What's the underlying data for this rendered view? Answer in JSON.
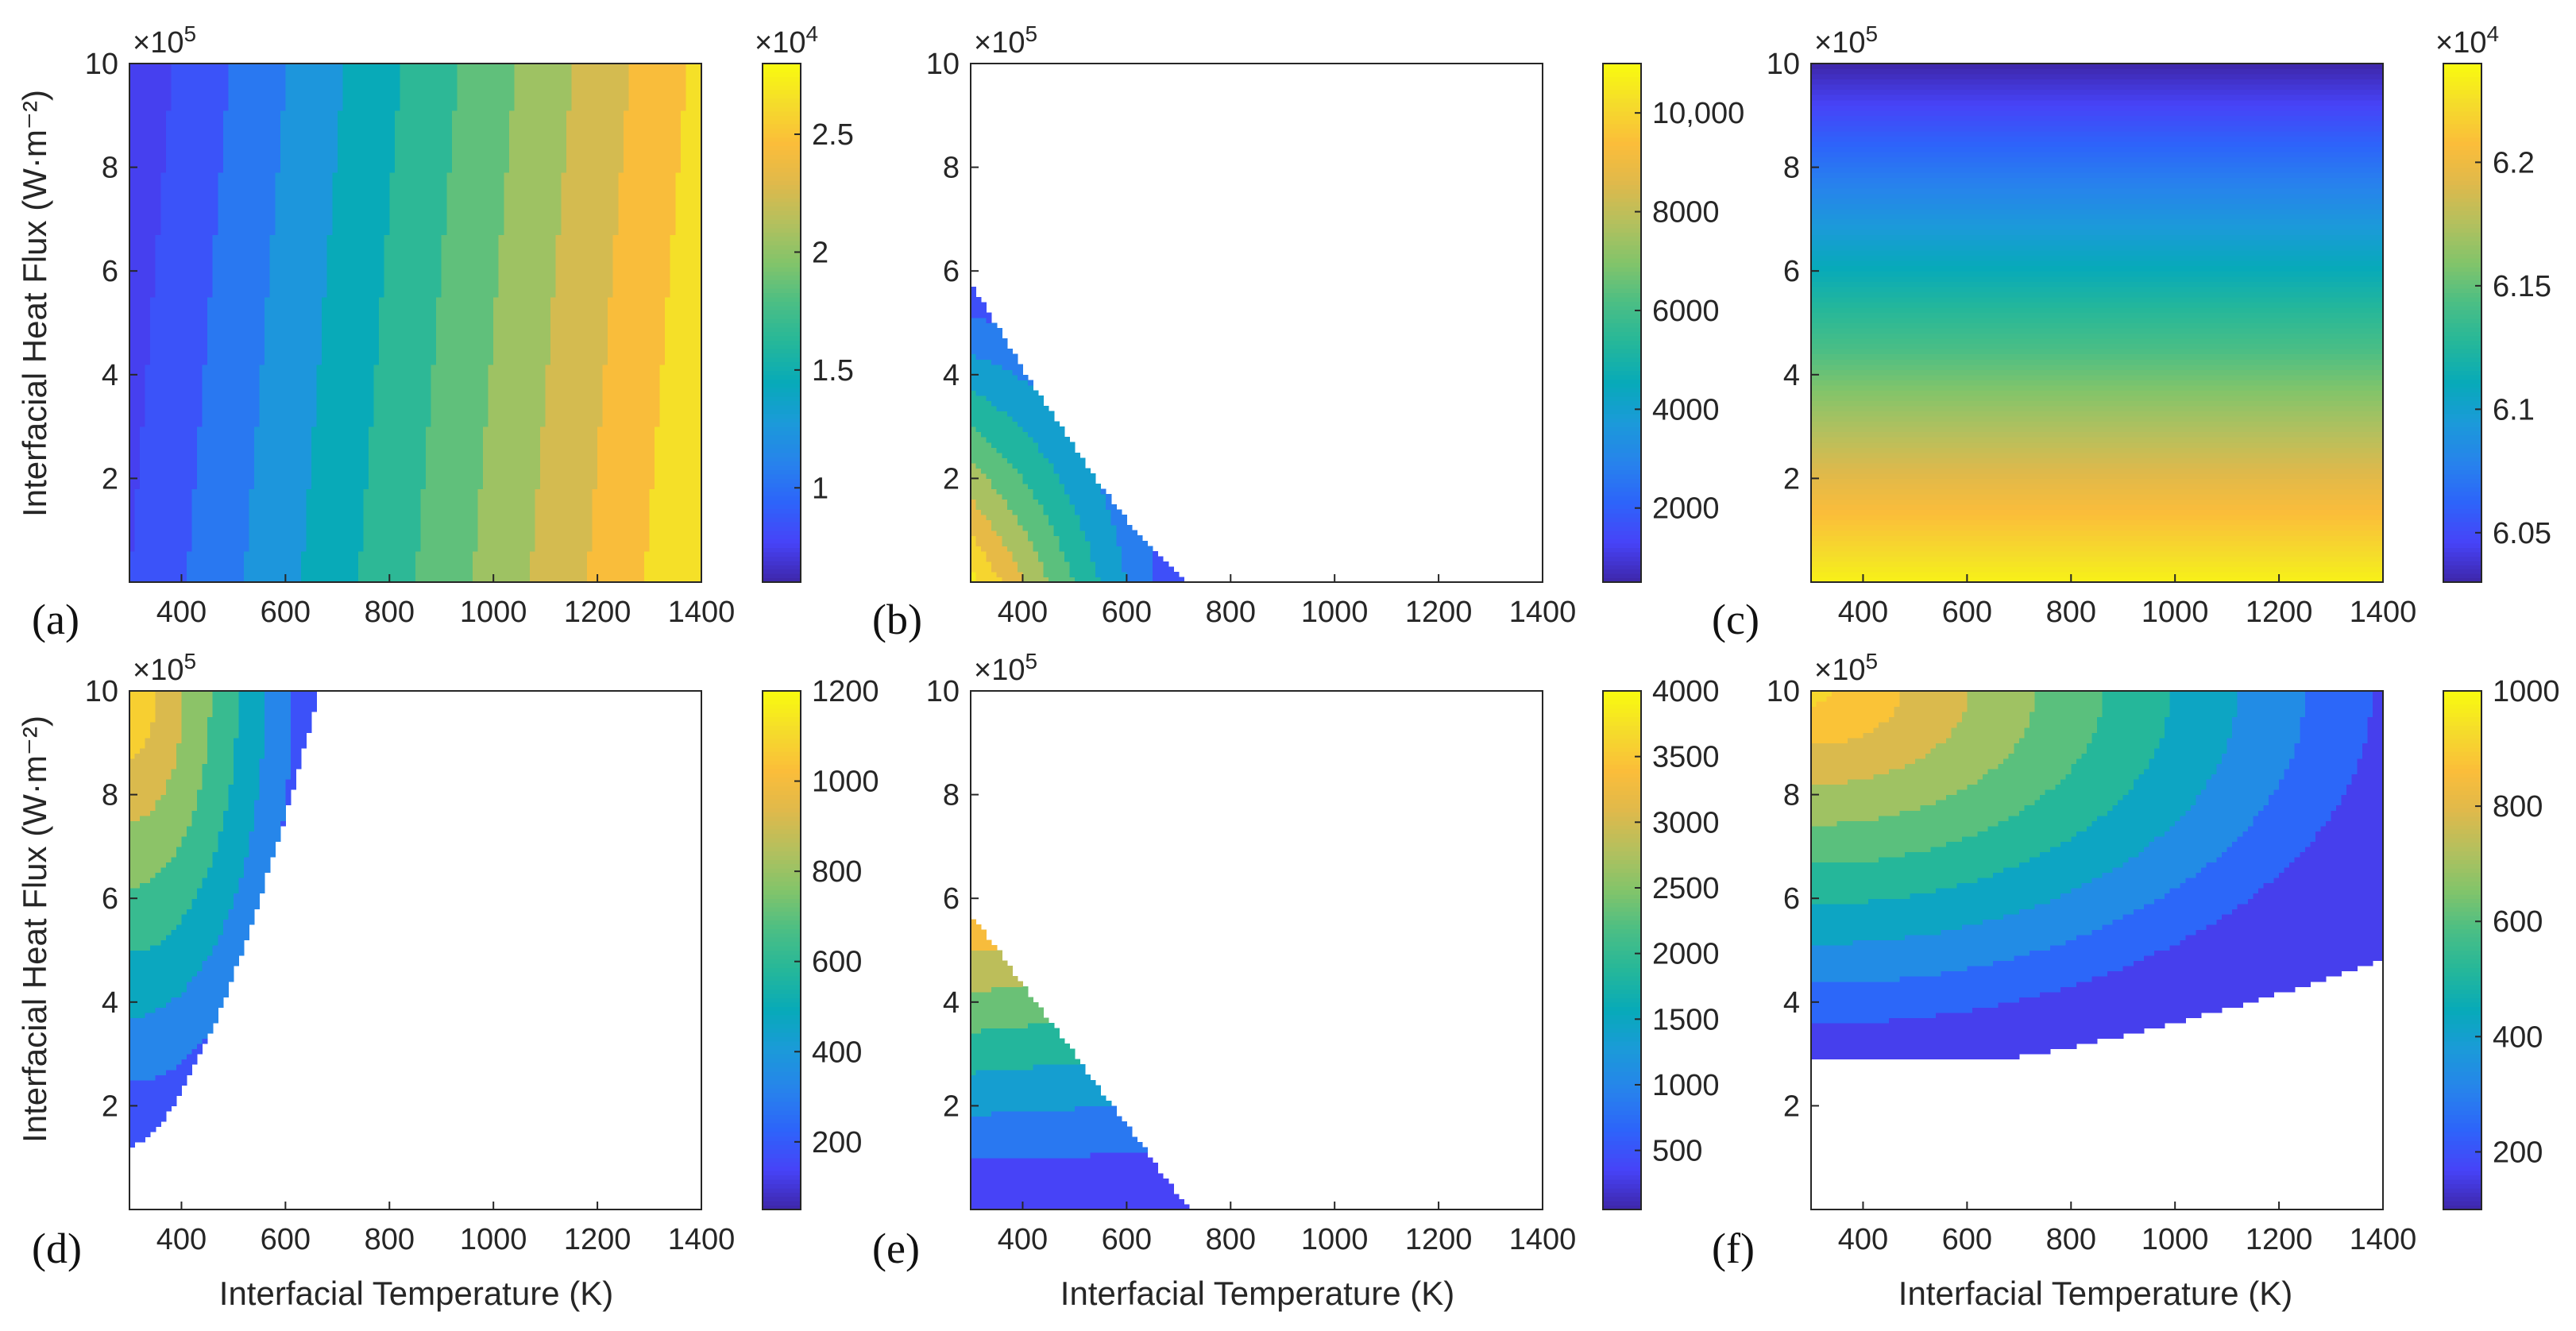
{
  "ylabel": "Interfacial Heat Flux (W·m⁻²)",
  "xlabel": "Interfacial Temperature (K)",
  "chart_data": [
    {
      "type": "heatmap",
      "panel": "(a)",
      "x": {
        "lim": [
          300,
          1400
        ],
        "ticks": [
          400,
          600,
          800,
          1000,
          1200,
          1400
        ]
      },
      "y": {
        "lim": [
          0,
          10
        ],
        "ticks": [
          2,
          4,
          6,
          8,
          10
        ],
        "exponent": "×10^5"
      },
      "ylabel": "Interfacial Heat Flux (W·m⁻²)",
      "colorbar": {
        "lim": [
          0.6,
          2.8
        ],
        "ticks": [
          1,
          1.5,
          2,
          2.5
        ],
        "tick_labels": [
          "1",
          "1.5",
          "2",
          "2.5"
        ],
        "exponent": "×10^4"
      },
      "valid_region": "full",
      "field": "linear in x and y, contour lines nearly vertical; value increases with temperature, slightly decreases with heat flux",
      "levels": [
        0.75,
        0.95,
        1.15,
        1.35,
        1.55,
        1.75,
        1.95,
        2.15,
        2.35,
        2.55,
        2.75
      ],
      "corner_values": {
        "x300_y0": 0.75,
        "x1400_y0": 2.75,
        "x300_y10": 0.6,
        "x1400_y10": 2.6
      }
    },
    {
      "type": "heatmap",
      "panel": "(b)",
      "x": {
        "lim": [
          300,
          1400
        ],
        "ticks": [
          400,
          600,
          800,
          1000,
          1200,
          1400
        ]
      },
      "y": {
        "lim": [
          0,
          10
        ],
        "ticks": [
          2,
          4,
          6,
          8,
          10
        ],
        "exponent": "×10^5"
      },
      "colorbar": {
        "lim": [
          500,
          11000
        ],
        "ticks": [
          2000,
          4000,
          6000,
          8000,
          10000
        ],
        "tick_labels": [
          "2000",
          "4000",
          "6000",
          "8000",
          "10,000"
        ]
      },
      "valid_region": "below boundary from (300, 5.8) to (720, 0)",
      "field": "diagonal bands; highest at lower-left corner (~11000), lowest near boundary (~1000)",
      "levels": [
        1000,
        2200,
        3400,
        4600,
        5800,
        7000,
        8200,
        9400,
        10600
      ]
    },
    {
      "type": "heatmap",
      "panel": "(c)",
      "x": {
        "lim": [
          300,
          1400
        ],
        "ticks": [
          400,
          600,
          800,
          1000,
          1200,
          1400
        ]
      },
      "y": {
        "lim": [
          0,
          10
        ],
        "ticks": [
          2,
          4,
          6,
          8,
          10
        ],
        "exponent": "×10^5"
      },
      "colorbar": {
        "lim": [
          6.03,
          6.24
        ],
        "ticks": [
          6.05,
          6.1,
          6.15,
          6.2
        ],
        "tick_labels": [
          "6.05",
          "6.1",
          "6.15",
          "6.2"
        ],
        "exponent": "×10^4"
      },
      "valid_region": "full",
      "field": "horizontal bands; value decreases with heat flux, independent of temperature",
      "band_values_bottom_to_top": [
        6.235,
        6.22,
        6.2,
        6.18,
        6.16,
        6.14,
        6.12,
        6.1,
        6.08,
        6.06,
        6.04,
        6.03
      ]
    },
    {
      "type": "heatmap",
      "panel": "(d)",
      "x": {
        "lim": [
          300,
          1400
        ],
        "ticks": [
          400,
          600,
          800,
          1000,
          1200,
          1400
        ]
      },
      "y": {
        "lim": [
          0,
          10
        ],
        "ticks": [
          2,
          4,
          6,
          8,
          10
        ],
        "exponent": "×10^5"
      },
      "ylabel": "Interfacial Heat Flux (W·m⁻²)",
      "xlabel": "Interfacial Temperature (K)",
      "colorbar": {
        "lim": [
          50,
          1200
        ],
        "ticks": [
          200,
          400,
          600,
          800,
          1000,
          1200
        ],
        "tick_labels": [
          "200",
          "400",
          "600",
          "800",
          "1000",
          "1200"
        ]
      },
      "valid_region": "left of boundary from (300, 1.2) curving up to (665, 10)",
      "field": "curved bands; highest at upper-left corner (~1150), lowest near bottom boundary (~100)",
      "levels": [
        100,
        250,
        400,
        550,
        700,
        850,
        1000,
        1150
      ]
    },
    {
      "type": "heatmap",
      "panel": "(e)",
      "x": {
        "lim": [
          300,
          1400
        ],
        "ticks": [
          400,
          600,
          800,
          1000,
          1200,
          1400
        ]
      },
      "y": {
        "lim": [
          0,
          10
        ],
        "ticks": [
          2,
          4,
          6,
          8,
          10
        ],
        "exponent": "×10^5"
      },
      "xlabel": "Interfacial Temperature (K)",
      "colorbar": {
        "lim": [
          50,
          4000
        ],
        "ticks": [
          500,
          1000,
          1500,
          2000,
          2500,
          3000,
          3500,
          4000
        ],
        "tick_labels": [
          "500",
          "1000",
          "1500",
          "2000",
          "2500",
          "3000",
          "3500",
          "4000"
        ]
      },
      "valid_region": "below boundary from (300, 5.7) to (720, 0)",
      "field": "fan-shaped bands; lowest along bottom (~100), highest near top of boundary (~3500)",
      "levels": [
        100,
        600,
        1100,
        1600,
        2100,
        2600,
        3100,
        3600
      ]
    },
    {
      "type": "heatmap",
      "panel": "(f)",
      "x": {
        "lim": [
          300,
          1400
        ],
        "ticks": [
          400,
          600,
          800,
          1000,
          1200,
          1400
        ]
      },
      "y": {
        "lim": [
          0,
          10
        ],
        "ticks": [
          2,
          4,
          6,
          8,
          10
        ],
        "exponent": "×10^5"
      },
      "xlabel": "Interfacial Temperature (K)",
      "colorbar": {
        "lim": [
          100,
          1000
        ],
        "ticks": [
          200,
          400,
          600,
          800,
          1000
        ],
        "tick_labels": [
          "200",
          "400",
          "600",
          "800",
          "1000"
        ]
      },
      "valid_region": "above y≈2.9 and above boundary rising to (1400, 4.8)",
      "field": "curved bands; highest at upper-left (~950), lowest at bottom (~120)",
      "levels": [
        120,
        200,
        290,
        380,
        470,
        560,
        650,
        740,
        830,
        920
      ]
    }
  ],
  "colors": {
    "colormap": [
      "#3e26a8",
      "#4743f8",
      "#2d64fa",
      "#2783ec",
      "#1b9ad9",
      "#07aab9",
      "#25b79a",
      "#4abe85",
      "#82c46a",
      "#b3c05e",
      "#dfb94b",
      "#fbbd3a",
      "#f5dc2b",
      "#f9fb0e"
    ]
  }
}
